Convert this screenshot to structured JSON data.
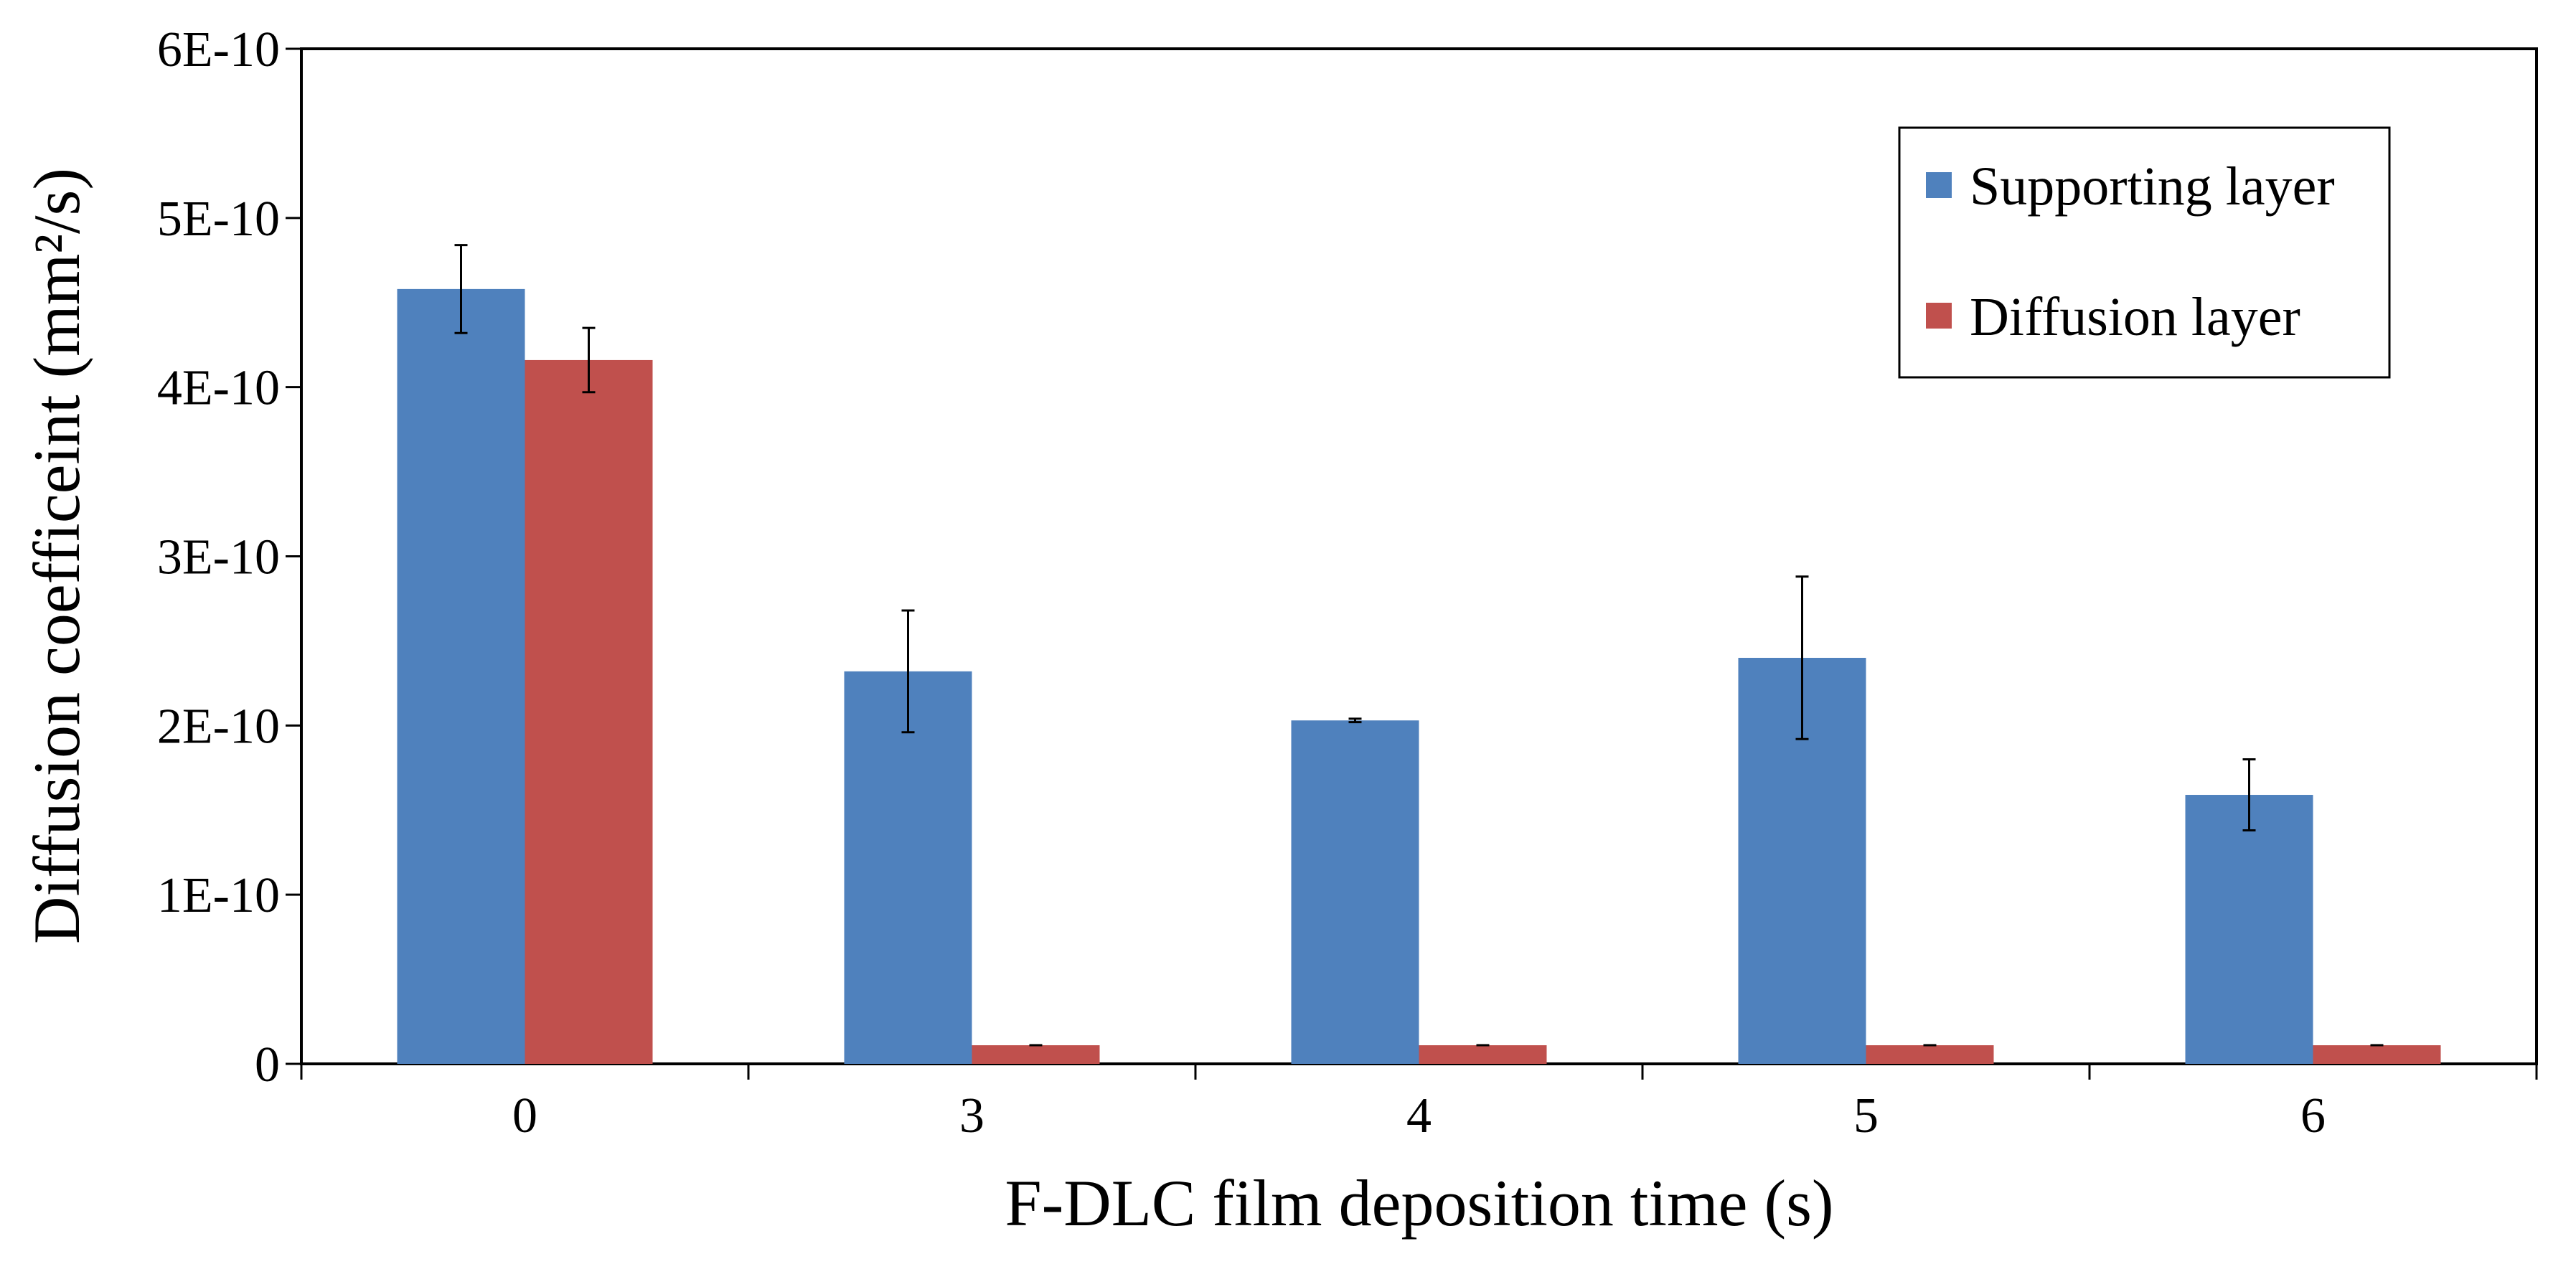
{
  "chart_data": {
    "type": "bar",
    "title": "",
    "xlabel": "F-DLC film deposition time (s)",
    "ylabel": "Diffusion coefficeint (mm²/s)",
    "categories": [
      "0",
      "3",
      "4",
      "5",
      "6"
    ],
    "y_tick_labels": [
      "0",
      "1E-10",
      "2E-10",
      "3E-10",
      "4E-10",
      "5E-10",
      "6E-10"
    ],
    "ylim": [
      0,
      6e-10
    ],
    "grid": false,
    "legend_position": "top-right",
    "series": [
      {
        "name": "Supporting layer",
        "color": "#4f81bd",
        "values": [
          4.58e-10,
          2.32e-10,
          2.03e-10,
          2.4e-10,
          1.59e-10
        ],
        "errors": [
          2.6e-11,
          3.6e-11,
          1e-12,
          4.8e-11,
          2.1e-11
        ]
      },
      {
        "name": "Diffusion layer",
        "color": "#c0504d",
        "values": [
          4.16e-10,
          1.1e-11,
          1.1e-11,
          1.1e-11,
          1.1e-11
        ],
        "errors": [
          1.9e-11,
          0,
          0,
          0,
          0
        ]
      }
    ]
  }
}
